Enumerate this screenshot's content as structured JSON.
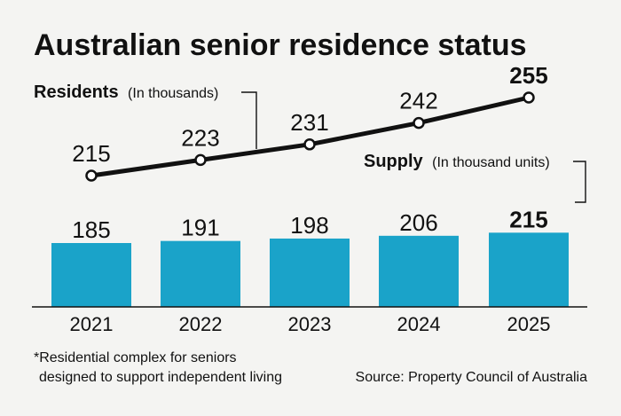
{
  "title": "Australian senior residence status",
  "legend": {
    "residents_label": "Residents",
    "residents_unit": "(In thousands)",
    "supply_label": "Supply",
    "supply_unit": "(In thousand units)"
  },
  "footnote": {
    "line1": "*Residential complex for seniors",
    "line2": "designed to support independent living"
  },
  "source": "Source: Property Council of Australia",
  "colors": {
    "bar": "#1aa3c9",
    "line": "#111111",
    "background": "#f4f4f2"
  },
  "chart_data": {
    "type": "bar",
    "title": "Australian senior residence status",
    "categories": [
      "2021",
      "2022",
      "2023",
      "2024",
      "2025"
    ],
    "series": [
      {
        "name": "Supply",
        "kind": "bar",
        "unit": "In thousand units",
        "values": [
          185,
          191,
          198,
          206,
          215
        ]
      },
      {
        "name": "Residents",
        "kind": "line",
        "unit": "In thousands",
        "values": [
          215,
          223,
          231,
          242,
          255
        ]
      }
    ],
    "grid": false
  }
}
